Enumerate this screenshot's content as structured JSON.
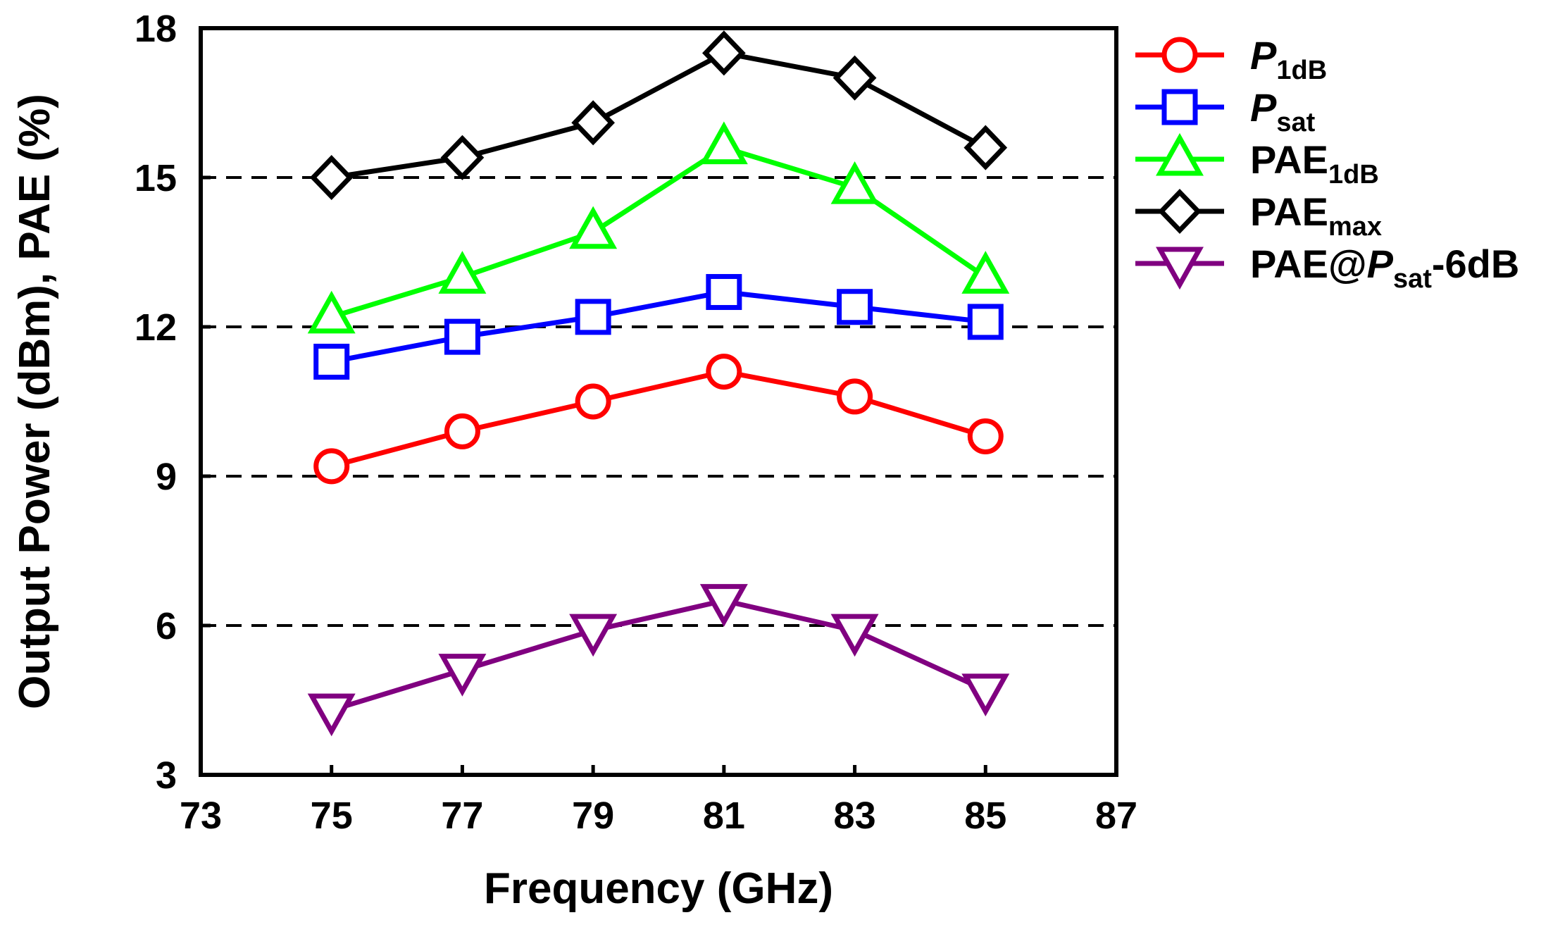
{
  "chart_data": {
    "type": "line",
    "xlabel": "Frequency (GHz)",
    "ylabel": "Output Power (dBm), PAE (%)",
    "xlim": [
      73,
      87
    ],
    "ylim": [
      3,
      18
    ],
    "x_ticks": [
      73,
      75,
      77,
      79,
      81,
      83,
      85,
      87
    ],
    "y_ticks": [
      3,
      6,
      9,
      12,
      15,
      18
    ],
    "x_tick_labels": [
      "73",
      "75",
      "77",
      "79",
      "81",
      "83",
      "85",
      "87"
    ],
    "y_tick_labels": [
      "3",
      "6",
      "9",
      "12",
      "15",
      "18"
    ],
    "gridlines_y": [
      6,
      9,
      12,
      15
    ],
    "grid_style": "dashed",
    "legend_position": "right",
    "x": [
      75,
      77,
      79,
      81,
      83,
      85
    ],
    "series": [
      {
        "name": "P1dB",
        "legend_parts": [
          {
            "t": "P",
            "style": "italic"
          },
          {
            "t": "1dB",
            "style": "sub"
          }
        ],
        "color": "#ff0000",
        "marker": "circle",
        "values": [
          9.2,
          9.9,
          10.5,
          11.1,
          10.6,
          9.8
        ]
      },
      {
        "name": "Psat",
        "legend_parts": [
          {
            "t": "P",
            "style": "italic"
          },
          {
            "t": "sat",
            "style": "sub"
          }
        ],
        "color": "#0000ff",
        "marker": "square",
        "values": [
          11.3,
          11.8,
          12.2,
          12.7,
          12.4,
          12.1
        ]
      },
      {
        "name": "PAE1dB",
        "legend_parts": [
          {
            "t": "PAE",
            "style": "normal"
          },
          {
            "t": "1dB",
            "style": "sub"
          }
        ],
        "color": "#00ff00",
        "marker": "triangle-up",
        "values": [
          12.2,
          13.0,
          13.9,
          15.6,
          14.8,
          13.0
        ]
      },
      {
        "name": "PAEmax",
        "legend_parts": [
          {
            "t": "PAE",
            "style": "normal"
          },
          {
            "t": "max",
            "style": "sub"
          }
        ],
        "color": "#000000",
        "marker": "diamond",
        "values": [
          15.0,
          15.4,
          16.1,
          17.5,
          17.0,
          15.6
        ]
      },
      {
        "name": "PAE@Psat-6dB",
        "legend_parts": [
          {
            "t": "PAE@",
            "style": "normal"
          },
          {
            "t": "P",
            "style": "italic"
          },
          {
            "t": "sat",
            "style": "sub"
          },
          {
            "t": "-6dB",
            "style": "normal"
          }
        ],
        "color": "#800080",
        "marker": "triangle-down",
        "values": [
          4.3,
          5.1,
          5.9,
          6.5,
          5.9,
          4.7
        ]
      }
    ]
  }
}
